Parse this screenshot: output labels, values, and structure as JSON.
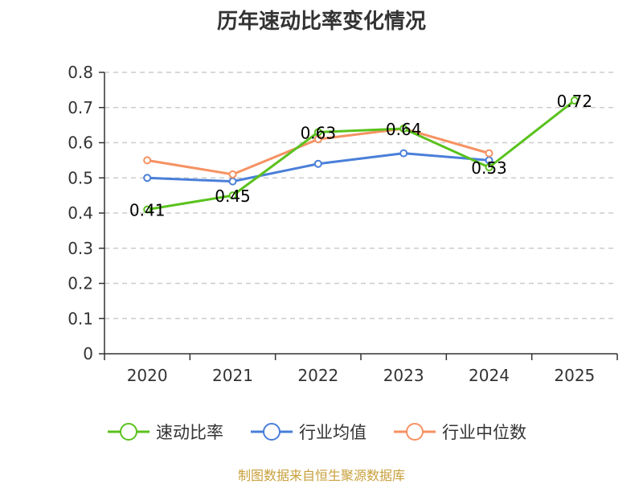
{
  "chart_data": {
    "type": "line",
    "title": "历年速动比率变化情况",
    "categories": [
      "2020",
      "2021",
      "2022",
      "2023",
      "2024",
      "2025"
    ],
    "ylim": [
      0,
      0.8
    ],
    "yticks": [
      "0",
      "0.1",
      "0.2",
      "0.3",
      "0.4",
      "0.5",
      "0.6",
      "0.7",
      "0.8"
    ],
    "grid": "horizontal dashed",
    "legend_position": "bottom",
    "series": [
      {
        "name": "速动比率",
        "color": "#5ac21d",
        "values": [
          0.41,
          0.45,
          0.63,
          0.64,
          0.53,
          0.72
        ],
        "labels": [
          "0.41",
          "0.45",
          "0.63",
          "0.64",
          "0.53",
          "0.72"
        ]
      },
      {
        "name": "行业均值",
        "color": "#4a7fd9",
        "values": [
          0.5,
          0.49,
          0.54,
          0.57,
          0.55,
          null
        ]
      },
      {
        "name": "行业中位数",
        "color": "#f59262",
        "values": [
          0.55,
          0.51,
          0.61,
          0.64,
          0.57,
          null
        ]
      }
    ]
  },
  "footer": "制图数据来自恒生聚源数据库"
}
